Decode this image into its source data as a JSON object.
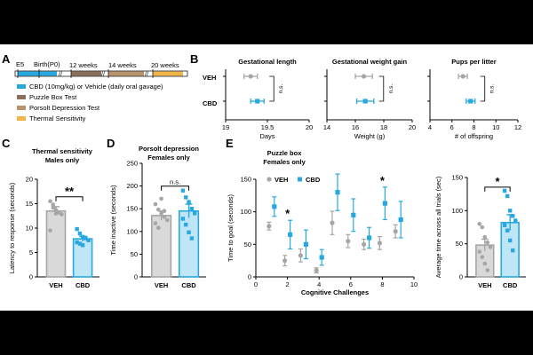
{
  "colors": {
    "veh": "#a6a6a6",
    "cbd": "#29a8e0",
    "axis": "#000000",
    "puzzle": "#8b6f5a",
    "porsolt": "#b9926a",
    "thermal": "#f0b44a",
    "bg": "#000000"
  },
  "panelA": {
    "letter": "A",
    "timeline": {
      "e5": "E5",
      "birth": "Birth(P0)",
      "w12": "12 weeks",
      "w14": "14 weeks",
      "w20": "20 weeks"
    },
    "legend": [
      {
        "label": "CBD (10mg/kg) or Vehicle (daily oral gavage)",
        "color": "cbd"
      },
      {
        "label": "Puzzle Box Test",
        "color": "puzzle"
      },
      {
        "label": "Porsolt Depression Test",
        "color": "porsolt"
      },
      {
        "label": "Thermal Sensitivity",
        "color": "thermal"
      }
    ]
  },
  "panelB": {
    "letter": "B",
    "rows": [
      "VEH",
      "CBD"
    ],
    "ns": "n.s.",
    "charts": [
      {
        "title": "Gestational length",
        "xlabel": "Days",
        "xlim": [
          19,
          20
        ],
        "ticks": [
          "19",
          "19.5",
          "20"
        ],
        "tickvals": [
          19,
          19.5,
          20
        ],
        "veh": {
          "mean": 19.3,
          "err": 0.08
        },
        "cbd": {
          "mean": 19.38,
          "err": 0.08
        }
      },
      {
        "title": "Gestational weight gain",
        "xlabel": "Weight (g)",
        "xlim": [
          14,
          20
        ],
        "ticks": [
          "14",
          "16",
          "18",
          "20"
        ],
        "tickvals": [
          14,
          16,
          18,
          20
        ],
        "veh": {
          "mean": 16.6,
          "err": 0.6
        },
        "cbd": {
          "mean": 16.7,
          "err": 0.6
        }
      },
      {
        "title": "Pups per litter",
        "xlabel": "# of offspring",
        "xlim": [
          4,
          12
        ],
        "ticks": [
          "4",
          "6",
          "8",
          "10",
          "12"
        ],
        "tickvals": [
          4,
          6,
          8,
          10,
          12
        ],
        "veh": {
          "mean": 7.0,
          "err": 0.4
        },
        "cbd": {
          "mean": 7.7,
          "err": 0.4
        }
      }
    ]
  },
  "panelC": {
    "letter": "C",
    "title1": "Thermal sensitivity",
    "title2": "Males only",
    "ylabel": "Latency to response (seconds)",
    "ylim": [
      0,
      20
    ],
    "ticks": [
      0,
      5,
      10,
      15,
      20
    ],
    "categories": [
      "VEH",
      "CBD"
    ],
    "means": [
      13.5,
      7.8
    ],
    "errs": [
      0.9,
      0.5
    ],
    "points": [
      [
        15.5,
        14.8,
        13.7,
        13.2,
        12.8,
        9.5,
        14.2,
        13.0
      ],
      [
        9.8,
        8.9,
        8.2,
        7.9,
        7.5,
        7.1,
        6.8,
        6.5,
        8.0
      ]
    ],
    "sig": "**"
  },
  "panelD": {
    "letter": "D",
    "title1": "Porsolt depression",
    "title2": "Females only",
    "ylabel": "Time inactive (seconds)",
    "ylim": [
      0,
      250
    ],
    "ticks": [
      0,
      50,
      100,
      150,
      200,
      250
    ],
    "categories": [
      "VEH",
      "CBD"
    ],
    "means": [
      135,
      145
    ],
    "errs": [
      10,
      15
    ],
    "points": [
      [
        160,
        148,
        140,
        132,
        125,
        118,
        108,
        172,
        145
      ],
      [
        190,
        175,
        165,
        150,
        140,
        128,
        115,
        98,
        85
      ]
    ],
    "sig": "n.s."
  },
  "panelE": {
    "letter": "E",
    "title1": "Puzzle box",
    "title2": "Females only",
    "ylabel": "Time to goal (seconds)",
    "xlabel": "Cognitive Challenges",
    "xlim": [
      0,
      10
    ],
    "xticks": [
      0,
      2,
      4,
      6,
      8,
      10
    ],
    "ylim": [
      0,
      150
    ],
    "yticks": [
      0,
      50,
      100,
      150
    ],
    "legend": [
      "VEH",
      "CBD"
    ],
    "x": [
      1,
      2,
      3,
      4,
      5,
      6,
      7,
      8,
      9
    ],
    "veh": {
      "means": [
        78,
        25,
        33,
        10,
        83,
        55,
        50,
        52,
        70
      ],
      "errs": [
        6,
        8,
        10,
        4,
        18,
        10,
        8,
        10,
        10
      ]
    },
    "cbd": {
      "means": [
        108,
        65,
        50,
        30,
        130,
        95,
        60,
        113,
        88
      ],
      "errs": [
        15,
        22,
        22,
        12,
        28,
        25,
        16,
        25,
        28
      ]
    },
    "stars": [
      {
        "x": 2,
        "label": "*"
      },
      {
        "x": 8,
        "label": "*"
      }
    ]
  },
  "panelE2": {
    "ylabel": "Average time across all trials (sec)",
    "ylim": [
      0,
      150
    ],
    "ticks": [
      0,
      50,
      100,
      150
    ],
    "categories": [
      "VEH",
      "CBD"
    ],
    "means": [
      48,
      82
    ],
    "errs": [
      9,
      12
    ],
    "points": [
      [
        80,
        75,
        60,
        52,
        45,
        38,
        30,
        20,
        10
      ],
      [
        130,
        122,
        100,
        92,
        85,
        78,
        70,
        55,
        40
      ]
    ],
    "sig": "*"
  }
}
